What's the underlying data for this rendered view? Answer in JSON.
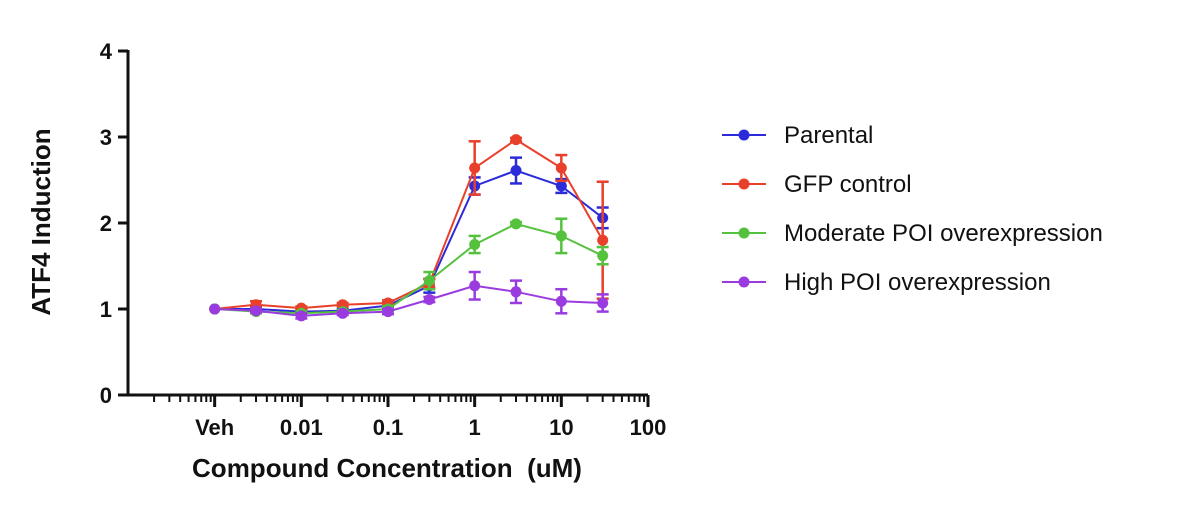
{
  "chart_data": {
    "type": "line",
    "title": "",
    "xlabel": "Compound Concentration  (uM)",
    "ylabel": "ATF4 Induction",
    "x_scale": "log",
    "x_tick_labels": [
      "Veh",
      "0.01",
      "0.1",
      "1",
      "10",
      "100"
    ],
    "x_tick_values": [
      0.001,
      0.01,
      0.1,
      1,
      10,
      100
    ],
    "xlim": [
      0.0001,
      100
    ],
    "ylim": [
      0,
      4
    ],
    "y_tick_labels": [
      "0",
      "1",
      "2",
      "3",
      "4"
    ],
    "y_tick_values": [
      0,
      1,
      2,
      3,
      4
    ],
    "legend_position": "right",
    "x": [
      0.001,
      0.003,
      0.01,
      0.03,
      0.1,
      0.3,
      1,
      3,
      10,
      30
    ],
    "series": [
      {
        "name": "Parental",
        "color": "#2b2bd9",
        "values": [
          1.0,
          1.0,
          0.97,
          0.98,
          1.04,
          1.27,
          2.43,
          2.61,
          2.43,
          2.06
        ],
        "errors": [
          0.0,
          0.03,
          0.02,
          0.02,
          0.03,
          0.08,
          0.1,
          0.15,
          0.08,
          0.12
        ]
      },
      {
        "name": "GFP control",
        "color": "#e8402b",
        "values": [
          1.0,
          1.05,
          1.01,
          1.05,
          1.07,
          1.3,
          2.64,
          2.97,
          2.64,
          1.8
        ],
        "errors": [
          0.0,
          0.04,
          0.02,
          0.02,
          0.03,
          0.05,
          0.31,
          0.02,
          0.15,
          0.68
        ]
      },
      {
        "name": "Moderate POI overexpression",
        "color": "#55c23e",
        "values": [
          1.0,
          0.97,
          0.95,
          0.97,
          1.0,
          1.33,
          1.75,
          1.99,
          1.85,
          1.62
        ],
        "errors": [
          0.0,
          0.02,
          0.02,
          0.02,
          0.03,
          0.1,
          0.1,
          0.02,
          0.2,
          0.1
        ]
      },
      {
        "name": "High POI overexpression",
        "color": "#9a3be0",
        "values": [
          1.0,
          0.98,
          0.92,
          0.95,
          0.97,
          1.11,
          1.27,
          1.2,
          1.09,
          1.07
        ],
        "errors": [
          0.0,
          0.02,
          0.03,
          0.02,
          0.03,
          0.03,
          0.16,
          0.13,
          0.14,
          0.1
        ]
      }
    ]
  }
}
